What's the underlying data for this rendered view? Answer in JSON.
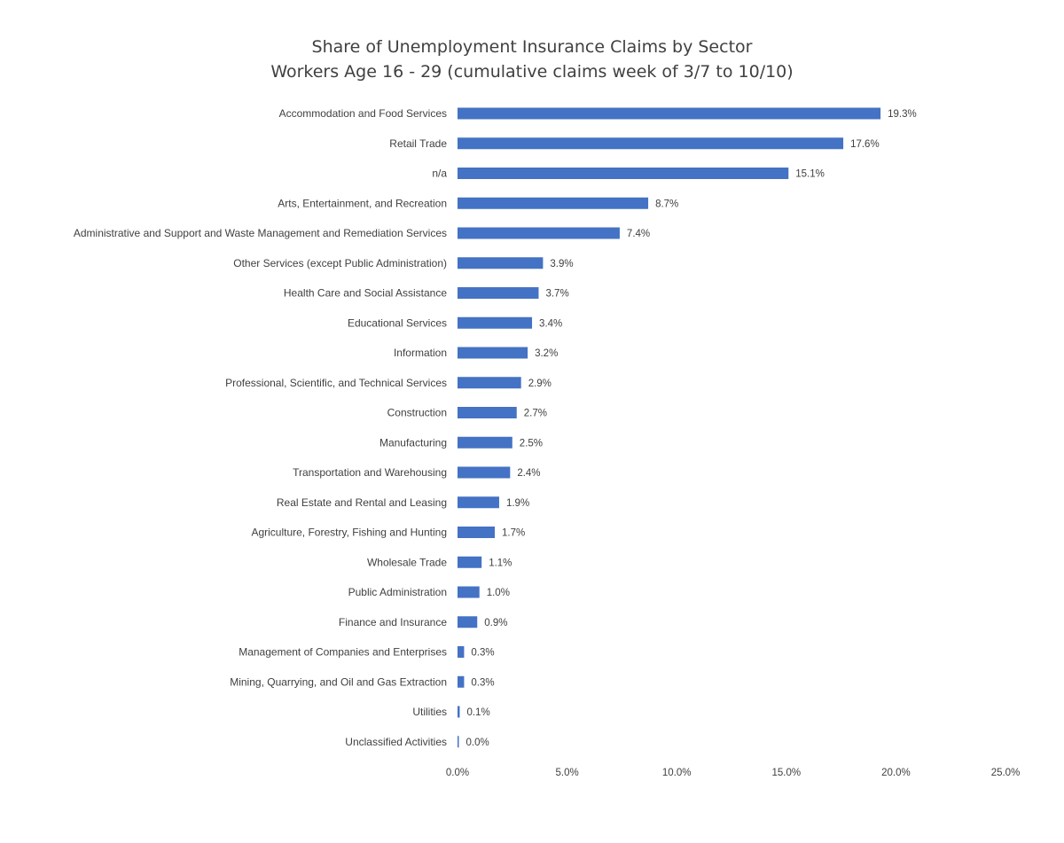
{
  "chart_data": {
    "type": "bar",
    "orientation": "horizontal",
    "title": "Share of Unemployment Insurance Claims by Sector",
    "subtitle": "Workers Age 16 - 29 (cumulative claims week of 3/7 to 10/10)",
    "xlabel": "",
    "ylabel": "",
    "xlim": [
      0,
      25
    ],
    "x_ticks": [
      "0.0%",
      "5.0%",
      "10.0%",
      "15.0%",
      "20.0%",
      "25.0%"
    ],
    "grid": false,
    "legend": "none",
    "bar_color": "#4472C4",
    "categories": [
      "Accommodation and Food Services",
      "Retail Trade",
      "n/a",
      "Arts, Entertainment, and Recreation",
      "Administrative and Support and Waste Management and Remediation Services",
      "Other Services (except Public Administration)",
      "Health Care and Social Assistance",
      "Educational Services",
      "Information",
      "Professional, Scientific, and Technical Services",
      "Construction",
      "Manufacturing",
      "Transportation and Warehousing",
      "Real Estate and Rental and Leasing",
      "Agriculture, Forestry, Fishing and Hunting",
      "Wholesale Trade",
      "Public Administration",
      "Finance and Insurance",
      "Management of Companies and Enterprises",
      "Mining, Quarrying, and Oil and Gas Extraction",
      "Utilities",
      "Unclassified Activities"
    ],
    "values": [
      19.3,
      17.6,
      15.1,
      8.7,
      7.4,
      3.9,
      3.7,
      3.4,
      3.2,
      2.9,
      2.7,
      2.5,
      2.4,
      1.9,
      1.7,
      1.1,
      1.0,
      0.9,
      0.3,
      0.3,
      0.1,
      0.0
    ],
    "value_labels": [
      "19.3%",
      "17.6%",
      "15.1%",
      "8.7%",
      "7.4%",
      "3.9%",
      "3.7%",
      "3.4%",
      "3.2%",
      "2.9%",
      "2.7%",
      "2.5%",
      "2.4%",
      "1.9%",
      "1.7%",
      "1.1%",
      "1.0%",
      "0.9%",
      "0.3%",
      "0.3%",
      "0.1%",
      "0.0%"
    ]
  }
}
